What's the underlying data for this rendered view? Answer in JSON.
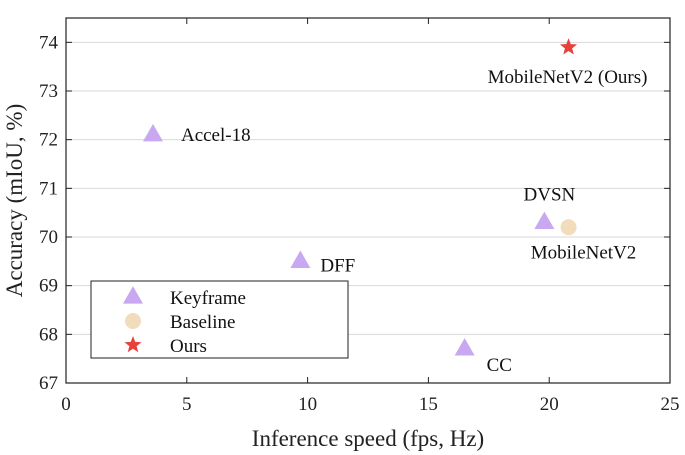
{
  "chart_data": {
    "type": "scatter",
    "xlabel": "Inference speed (fps, Hz)",
    "ylabel": "Accuracy (mIoU, %)",
    "xlim": [
      0,
      25
    ],
    "ylim": [
      67,
      74.5
    ],
    "xticks": [
      "0",
      "5",
      "10",
      "15",
      "20",
      "25"
    ],
    "yticks": [
      "67",
      "68",
      "69",
      "70",
      "71",
      "72",
      "73",
      "74"
    ],
    "grid": "horizontal",
    "legend_position": "bottom-left",
    "series": [
      {
        "name": "Keyframe",
        "marker": "triangle",
        "color": "#c8a8f0",
        "points": [
          {
            "label": "Accel-18",
            "x": 3.6,
            "y": 72.1
          },
          {
            "label": "DFF",
            "x": 9.7,
            "y": 69.5
          },
          {
            "label": "DVSN",
            "x": 19.8,
            "y": 70.3
          },
          {
            "label": "CC",
            "x": 16.5,
            "y": 67.7
          }
        ]
      },
      {
        "name": "Baseline",
        "marker": "circle",
        "color": "#f1dcbc",
        "points": [
          {
            "label": "MobileNetV2",
            "x": 20.8,
            "y": 70.2
          }
        ]
      },
      {
        "name": "Ours",
        "marker": "star",
        "color": "#e8413a",
        "points": [
          {
            "label": "MobileNetV2 (Ours)",
            "x": 20.8,
            "y": 73.9
          }
        ]
      }
    ]
  }
}
